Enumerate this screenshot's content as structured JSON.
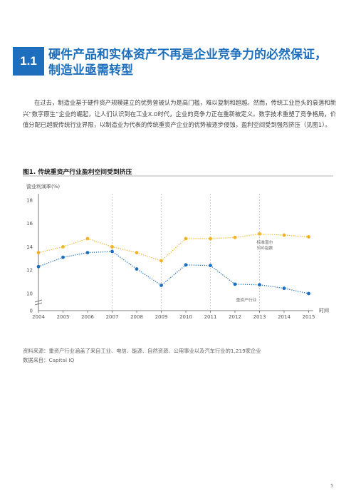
{
  "section": {
    "number": "1.1",
    "title_lines": [
      "硬件产品和实体资产不再是企业竞争力的必然保证，",
      "制造业亟需转型"
    ]
  },
  "intro": "在过去，制造业基于硬件资产规模建立的优势曾被认为是高门槛，难以复制和超越。然而，传统工业巨头的衰落和新兴“数字原生”企业的崛起，让人们认识到在工业X.0时代，企业的竞争力正在重新被定义。数字技术重塑了竞争格局，价值分配已超脱传统行业界限，以制造业为代表的传统重资产企业的优势被逐步侵蚀，盈利空间受到强烈挤压（见图1）。",
  "figure_title": "图1. 传统重资产行业盈利空间受到挤压",
  "chart_data": {
    "type": "line",
    "ylabel": "营业利润率(%)",
    "xlabel": "时间",
    "x": [
      "2004",
      "2005",
      "2006",
      "2007",
      "2008",
      "2009",
      "2010",
      "2011",
      "2012",
      "2013",
      "2014",
      "2015"
    ],
    "yticks": [
      "0",
      "10",
      "12",
      "14",
      "16",
      "18"
    ],
    "ylim": [
      9,
      19
    ],
    "axis_break": true,
    "grid": "dashed vertical lines at 2007, 2009, 2011, 2013",
    "series": [
      {
        "name": "标准普尔500指数",
        "label_lines": [
          "标准普尔",
          "500指数"
        ],
        "color": "#f0b323",
        "values": [
          13.5,
          14.0,
          14.7,
          14.0,
          13.5,
          12.8,
          14.7,
          14.7,
          14.8,
          15.1,
          15.0,
          14.85
        ]
      },
      {
        "name": "重资产行业",
        "label_lines": [
          "重资产行业"
        ],
        "color": "#1d6fbe",
        "values": [
          12.3,
          13.1,
          13.5,
          13.6,
          12.1,
          10.7,
          12.45,
          12.4,
          10.8,
          10.75,
          10.45,
          10.0
        ]
      }
    ]
  },
  "notes": [
    "资料来源：重资产行业涵盖了来自工业、电信、能源、自然资源、公用事业以及汽车行业的1,219家企业",
    "数据来自：Capital IQ"
  ],
  "page_number": "5"
}
